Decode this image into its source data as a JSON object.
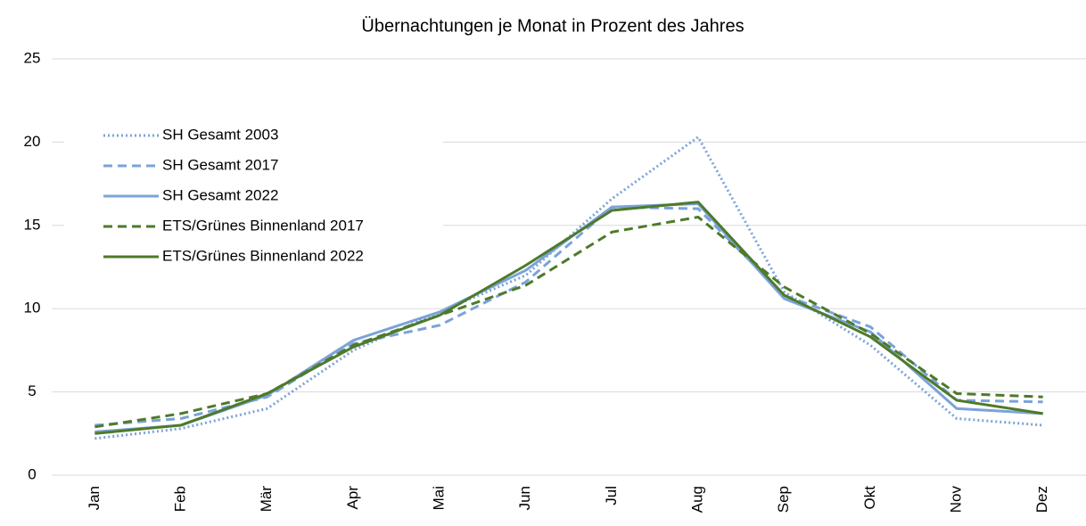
{
  "chart_data": {
    "type": "line",
    "title": "Übernachtungen je Monat in Prozent des Jahres",
    "categories": [
      "Jan",
      "Feb",
      "Mär",
      "Apr",
      "Mai",
      "Jun",
      "Jul",
      "Aug",
      "Sep",
      "Okt",
      "Nov",
      "Dez"
    ],
    "series": [
      {
        "name": "SH Gesamt 2003",
        "color": "#7ba3d9",
        "dash": "dotted",
        "values": [
          2.2,
          2.8,
          4.0,
          7.5,
          9.8,
          12.0,
          16.6,
          20.3,
          11.0,
          7.8,
          3.4,
          3.0
        ]
      },
      {
        "name": "SH Gesamt 2017",
        "color": "#7ba3d9",
        "dash": "dashed",
        "values": [
          3.0,
          3.4,
          4.7,
          7.9,
          9.0,
          11.6,
          16.1,
          16.0,
          10.8,
          8.9,
          4.5,
          4.4
        ]
      },
      {
        "name": "SH Gesamt 2022",
        "color": "#7ba3d9",
        "dash": "solid",
        "values": [
          2.6,
          3.0,
          4.8,
          8.1,
          9.8,
          12.3,
          16.1,
          16.3,
          10.6,
          8.6,
          4.0,
          3.7
        ]
      },
      {
        "name": "ETS/Grünes Binnenland 2017",
        "color": "#4e7a2a",
        "dash": "dashed",
        "values": [
          2.9,
          3.7,
          4.9,
          7.8,
          9.6,
          11.4,
          14.6,
          15.5,
          11.3,
          8.5,
          4.9,
          4.7
        ]
      },
      {
        "name": "ETS/Grünes Binnenland 2022",
        "color": "#4e7a2a",
        "dash": "solid",
        "values": [
          2.5,
          3.0,
          4.9,
          7.7,
          9.6,
          12.6,
          15.9,
          16.4,
          10.8,
          8.3,
          4.5,
          3.7
        ]
      }
    ],
    "ylim": [
      0,
      25
    ],
    "yticks": [
      0,
      5,
      10,
      15,
      20,
      25
    ],
    "grid": true,
    "legend": "upper left"
  }
}
